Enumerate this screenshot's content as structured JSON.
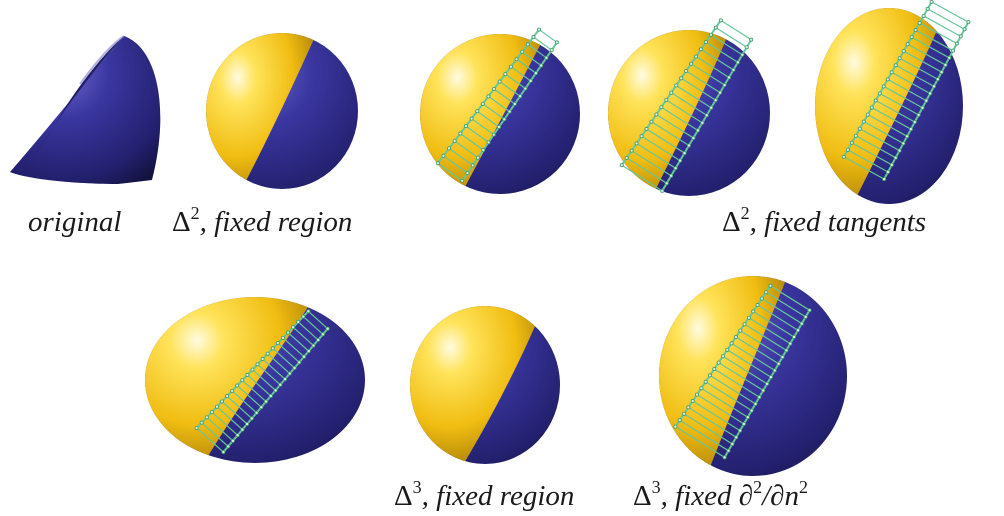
{
  "colors": {
    "yellow": "#f2c21b",
    "blue": "#2e2a87",
    "cage": "#66c79a",
    "background": "#ffffff"
  },
  "captions": {
    "original": "original",
    "d2_region": {
      "symbol": "Δ",
      "power": "2",
      "text": ", fixed region"
    },
    "d2_tangents": {
      "symbol": "Δ",
      "power": "2",
      "text": ", fixed tangents"
    },
    "d3_region": {
      "symbol": "Δ",
      "power": "3",
      "text": ", fixed region"
    },
    "d3_normal": {
      "symbol": "Δ",
      "power": "3",
      "text": ", fixed ∂",
      "power2": "2",
      "text2": "/∂n",
      "power3": "2"
    }
  }
}
